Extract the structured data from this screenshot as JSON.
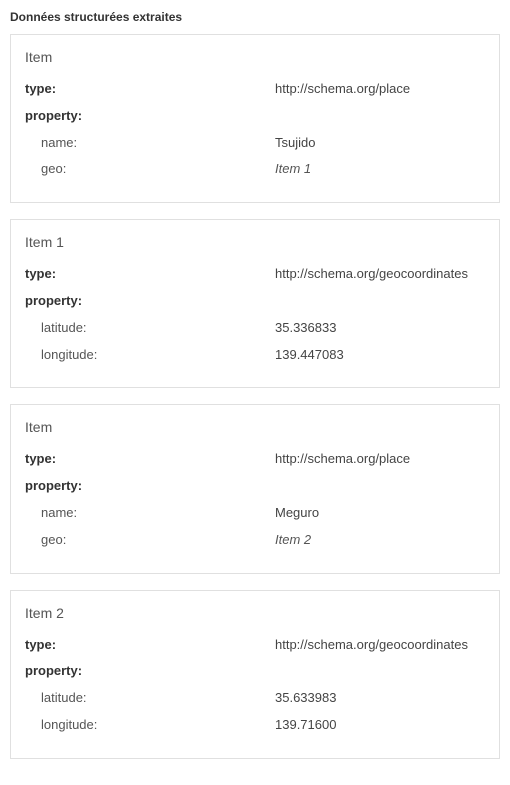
{
  "page": {
    "title": "Données structurées extraites"
  },
  "labels": {
    "type": "type:",
    "property": "property:",
    "name": "name:",
    "geo": "geo:",
    "latitude": "latitude:",
    "longitude": "longitude:"
  },
  "cards": [
    {
      "header": "Item",
      "type_value": "http://schema.org/place",
      "props": [
        {
          "k": "name",
          "v": "Tsujido",
          "italic": false
        },
        {
          "k": "geo",
          "v": "Item 1",
          "italic": true
        }
      ]
    },
    {
      "header": "Item 1",
      "type_value": "http://schema.org/geocoordinates",
      "props": [
        {
          "k": "latitude",
          "v": "35.336833",
          "italic": false
        },
        {
          "k": "longitude",
          "v": "139.447083",
          "italic": false
        }
      ]
    },
    {
      "header": "Item",
      "type_value": "http://schema.org/place",
      "props": [
        {
          "k": "name",
          "v": "Meguro",
          "italic": false
        },
        {
          "k": "geo",
          "v": "Item 2",
          "italic": true
        }
      ]
    },
    {
      "header": "Item 2",
      "type_value": "http://schema.org/geocoordinates",
      "props": [
        {
          "k": "latitude",
          "v": "35.633983",
          "italic": false
        },
        {
          "k": "longitude",
          "v": "139.71600",
          "italic": false
        }
      ]
    }
  ]
}
